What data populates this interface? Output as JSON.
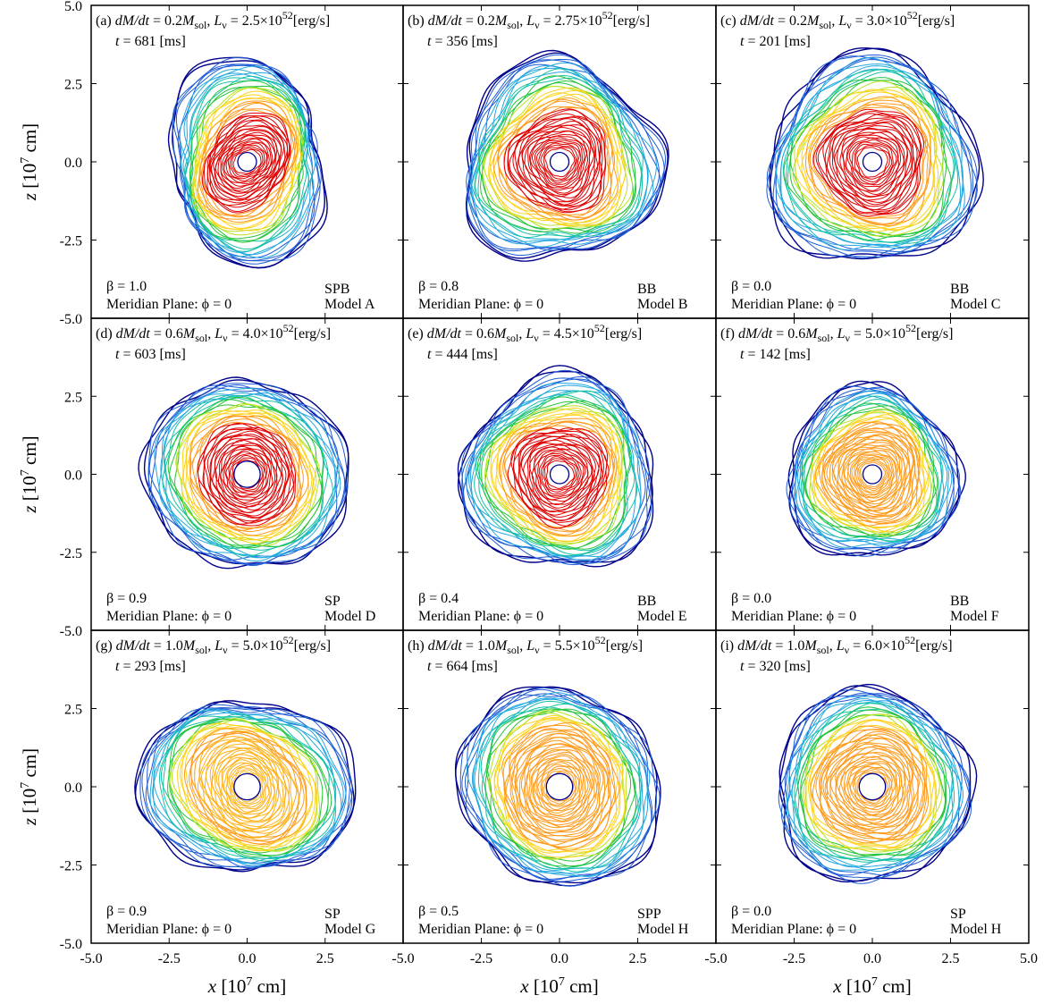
{
  "chart_data": {
    "type": "contour",
    "xlabel": "x [10^7 cm]",
    "ylabel": "z [10^7 cm]",
    "xlim": [
      -5.0,
      5.0
    ],
    "ylim": [
      -5.0,
      5.0
    ],
    "x_ticks": [
      "-5.0",
      "-2.5",
      "0.0",
      "2.5",
      "5.0"
    ],
    "y_ticks": [
      "5.0",
      "2.5",
      "0.0",
      "-2.5",
      "-5.0"
    ],
    "panel_x_tick_labels": [
      [
        "-5.0",
        "-2.5",
        "0.0",
        "2.5"
      ],
      [
        "-5.0",
        "-2.5",
        "0.0",
        "2.5"
      ],
      [
        "-5.0",
        "-2.5",
        "0.0",
        "2.5",
        "5.0"
      ]
    ],
    "grid": false,
    "colormap": [
      "#00008b",
      "#1e5cd6",
      "#24a8e0",
      "#17c3a6",
      "#27c43a",
      "#b9e31e",
      "#ffd21a",
      "#ff9a1a",
      "#f05a14",
      "#e00000"
    ],
    "panels": [
      {
        "label": "(a)",
        "mdot": "0.2",
        "lum": "2.5",
        "time": "681",
        "beta": "1.0",
        "mode": "SPB",
        "model": "Model A",
        "outer_radius": 2.85,
        "inner_radius": 0.3,
        "lobes": 2,
        "lobe_amp": 0.2,
        "lobe_phase": 2.6,
        "core_color": "#e00000"
      },
      {
        "label": "(b)",
        "mdot": "0.2",
        "lum": "2.75",
        "time": "356",
        "beta": "0.8",
        "mode": "BB",
        "model": "Model B",
        "outer_radius": 3.2,
        "inner_radius": 0.3,
        "lobes": 3,
        "lobe_amp": 0.1,
        "lobe_phase": 0.6,
        "core_color": "#e00000"
      },
      {
        "label": "(c)",
        "mdot": "0.2",
        "lum": "3.0",
        "time": "201",
        "beta": "0.0",
        "mode": "BB",
        "model": "Model C",
        "outer_radius": 3.35,
        "inner_radius": 0.3,
        "lobes": 3,
        "lobe_amp": 0.08,
        "lobe_phase": 1.2,
        "core_color": "#e00000"
      },
      {
        "label": "(d)",
        "mdot": "0.6",
        "lum": "4.0",
        "time": "603",
        "beta": "0.9",
        "mode": "SP",
        "model": "Model D",
        "outer_radius": 3.15,
        "inner_radius": 0.42,
        "lobes": 2,
        "lobe_amp": 0.06,
        "lobe_phase": 0.4,
        "core_color": "#e00000"
      },
      {
        "label": "(e)",
        "mdot": "0.6",
        "lum": "4.5",
        "time": "444",
        "beta": "0.4",
        "mode": "BB",
        "model": "Model E",
        "outer_radius": 3.1,
        "inner_radius": 0.3,
        "lobes": 3,
        "lobe_amp": 0.08,
        "lobe_phase": 2.0,
        "core_color": "#e00000"
      },
      {
        "label": "(f)",
        "mdot": "0.6",
        "lum": "5.0",
        "time": "142",
        "beta": "0.0",
        "mode": "BB",
        "model": "Model F",
        "outer_radius": 2.75,
        "inner_radius": 0.3,
        "lobes": 3,
        "lobe_amp": 0.07,
        "lobe_phase": 0.9,
        "core_color": "#ff9a1a"
      },
      {
        "label": "(g)",
        "mdot": "1.0",
        "lum": "5.0",
        "time": "293",
        "beta": "0.9",
        "mode": "SP",
        "model": "Model G",
        "outer_radius": 3.1,
        "inner_radius": 0.42,
        "lobes": 2,
        "lobe_amp": 0.14,
        "lobe_phase": 0.0,
        "core_color": "#ffb21a"
      },
      {
        "label": "(h)",
        "mdot": "1.0",
        "lum": "5.5",
        "time": "664",
        "beta": "0.5",
        "mode": "SPP",
        "model": "Model H",
        "outer_radius": 3.2,
        "inner_radius": 0.42,
        "lobes": 2,
        "lobe_amp": 0.06,
        "lobe_phase": 1.3,
        "core_color": "#ff9a1a"
      },
      {
        "label": "(i)",
        "mdot": "1.0",
        "lum": "6.0",
        "time": "320",
        "beta": "0.0",
        "mode": "SP",
        "model": "Model H",
        "outer_radius": 3.1,
        "inner_radius": 0.42,
        "lobes": 3,
        "lobe_amp": 0.05,
        "lobe_phase": 0.3,
        "core_color": "#ff9a1a"
      }
    ],
    "text": {
      "mdot_label": "dM/dt",
      "msol_label": "M",
      "msol_sub": "sol",
      "lum_label": "L",
      "lum_sub": "ν",
      "lum_exp": "×10",
      "lum_pow": "52",
      "lum_unit": "[erg/s]",
      "time_label": "t",
      "time_unit": "[ms]",
      "beta_label": "β",
      "meridian_label": "Meridian Plane: ϕ = 0",
      "x_title_main": "x",
      "y_title_main": "z",
      "axis_title_unit": "[10",
      "axis_title_pow": "7",
      "axis_title_end": " cm]"
    }
  }
}
